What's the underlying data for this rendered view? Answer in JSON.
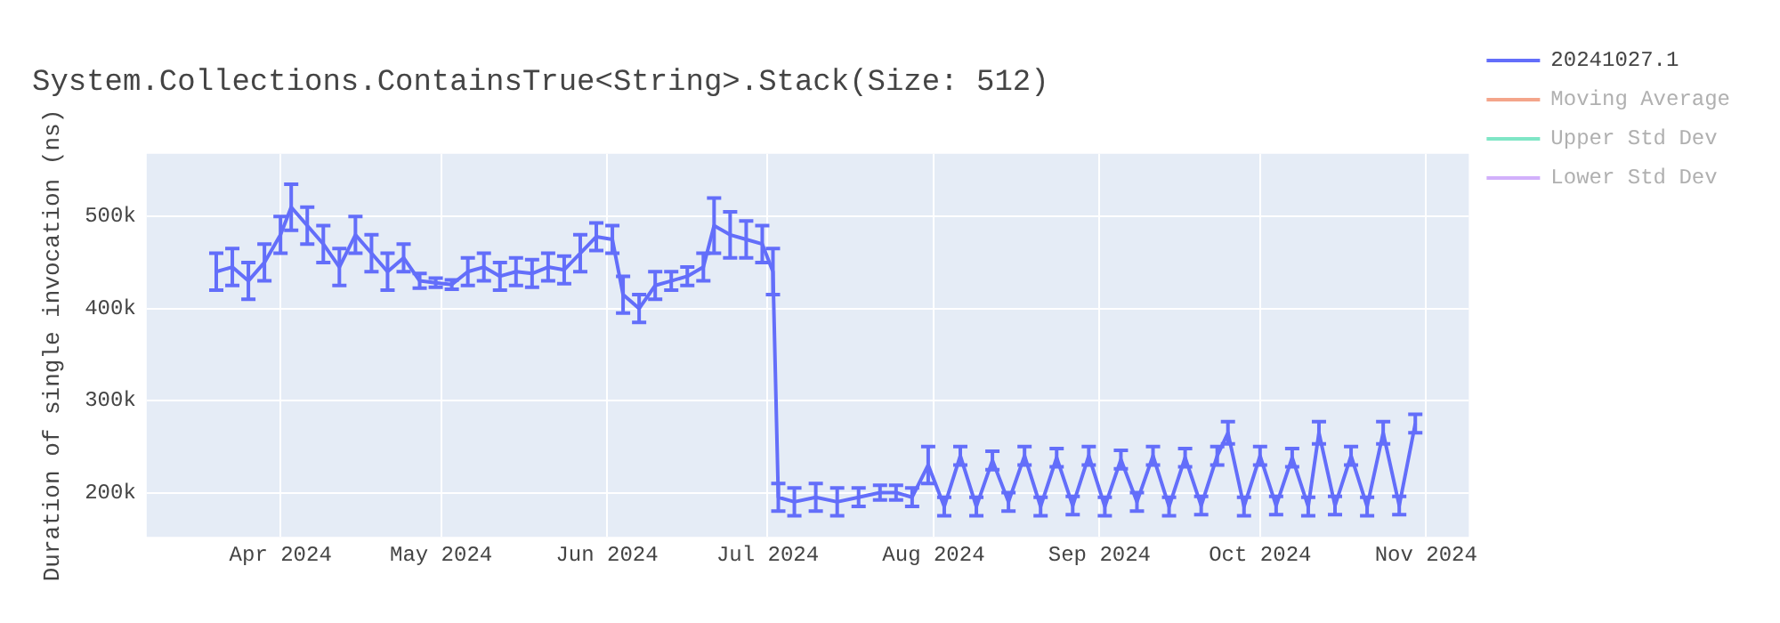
{
  "chart_data": {
    "type": "line",
    "title": "System.Collections.ContainsTrue<String>.Stack(Size: 512)",
    "ylabel": "Duration of single invocation (ns)",
    "xlim": [
      "2024-03-07",
      "2024-11-09"
    ],
    "xticks": [
      {
        "value": "2024-04-01",
        "label": "Apr 2024"
      },
      {
        "value": "2024-05-01",
        "label": "May 2024"
      },
      {
        "value": "2024-06-01",
        "label": "Jun 2024"
      },
      {
        "value": "2024-07-01",
        "label": "Jul 2024"
      },
      {
        "value": "2024-08-01",
        "label": "Aug 2024"
      },
      {
        "value": "2024-09-01",
        "label": "Sep 2024"
      },
      {
        "value": "2024-10-01",
        "label": "Oct 2024"
      },
      {
        "value": "2024-11-01",
        "label": "Nov 2024"
      }
    ],
    "ylim": [
      152000,
      568000
    ],
    "yticks": [
      {
        "value": 200000,
        "label": "200k"
      },
      {
        "value": 300000,
        "label": "300k"
      },
      {
        "value": 400000,
        "label": "400k"
      },
      {
        "value": 500000,
        "label": "500k"
      }
    ],
    "grid": true,
    "legend": "right",
    "line_style": "solid",
    "x": [
      "2024-03-20",
      "2024-03-23",
      "2024-03-26",
      "2024-03-29",
      "2024-04-01",
      "2024-04-03",
      "2024-04-06",
      "2024-04-09",
      "2024-04-12",
      "2024-04-15",
      "2024-04-18",
      "2024-04-21",
      "2024-04-24",
      "2024-04-27",
      "2024-04-30",
      "2024-05-03",
      "2024-05-06",
      "2024-05-09",
      "2024-05-12",
      "2024-05-15",
      "2024-05-18",
      "2024-05-21",
      "2024-05-24",
      "2024-05-27",
      "2024-05-30",
      "2024-06-02",
      "2024-06-04",
      "2024-06-07",
      "2024-06-10",
      "2024-06-13",
      "2024-06-16",
      "2024-06-19",
      "2024-06-21",
      "2024-06-24",
      "2024-06-27",
      "2024-06-30",
      "2024-07-02",
      "2024-07-03",
      "2024-07-06",
      "2024-07-10",
      "2024-07-14",
      "2024-07-18",
      "2024-07-22",
      "2024-07-25",
      "2024-07-28",
      "2024-07-31",
      "2024-08-03",
      "2024-08-06",
      "2024-08-09",
      "2024-08-12",
      "2024-08-15",
      "2024-08-18",
      "2024-08-21",
      "2024-08-24",
      "2024-08-27",
      "2024-08-30",
      "2024-09-02",
      "2024-09-05",
      "2024-09-08",
      "2024-09-11",
      "2024-09-14",
      "2024-09-17",
      "2024-09-20",
      "2024-09-23",
      "2024-09-25",
      "2024-09-28",
      "2024-10-01",
      "2024-10-04",
      "2024-10-07",
      "2024-10-10",
      "2024-10-12",
      "2024-10-15",
      "2024-10-18",
      "2024-10-21",
      "2024-10-24",
      "2024-10-27",
      "2024-10-30"
    ],
    "series": [
      {
        "name": "20241027.1",
        "color": "#636efa",
        "values": [
          440000,
          445000,
          430000,
          450000,
          480000,
          510000,
          490000,
          470000,
          445000,
          480000,
          460000,
          440000,
          455000,
          430000,
          428000,
          426000,
          440000,
          445000,
          435000,
          440000,
          438000,
          445000,
          442000,
          460000,
          478000,
          475000,
          415000,
          400000,
          425000,
          430000,
          435000,
          445000,
          490000,
          480000,
          475000,
          470000,
          440000,
          195000,
          190000,
          195000,
          190000,
          195000,
          200000,
          200000,
          195000,
          230000,
          185000,
          240000,
          185000,
          235000,
          190000,
          240000,
          185000,
          238000,
          186000,
          240000,
          185000,
          236000,
          190000,
          240000,
          185000,
          238000,
          186000,
          240000,
          265000,
          185000,
          240000,
          186000,
          238000,
          185000,
          265000,
          186000,
          240000,
          185000,
          265000,
          186000,
          275000
        ],
        "errors": [
          20000,
          20000,
          20000,
          20000,
          20000,
          25000,
          20000,
          20000,
          20000,
          20000,
          20000,
          20000,
          15000,
          8000,
          5000,
          5000,
          15000,
          15000,
          15000,
          15000,
          15000,
          15000,
          15000,
          20000,
          15000,
          15000,
          20000,
          15000,
          15000,
          10000,
          10000,
          15000,
          30000,
          25000,
          20000,
          20000,
          25000,
          15000,
          15000,
          15000,
          15000,
          10000,
          8000,
          8000,
          10000,
          20000,
          10000,
          10000,
          10000,
          10000,
          10000,
          10000,
          10000,
          10000,
          10000,
          10000,
          10000,
          10000,
          10000,
          10000,
          10000,
          10000,
          10000,
          10000,
          12000,
          10000,
          10000,
          10000,
          10000,
          10000,
          12000,
          10000,
          10000,
          10000,
          12000,
          10000,
          10000
        ]
      },
      {
        "name": "Moving Average",
        "color": "#f4a58a",
        "values": [
          null,
          null,
          null,
          null,
          null,
          null,
          null,
          null,
          null,
          null,
          null,
          null,
          null,
          null,
          null,
          null,
          null,
          null,
          null,
          null,
          null,
          null,
          null,
          null,
          null,
          null,
          null,
          null,
          null,
          null,
          null,
          null,
          null,
          null,
          null,
          null,
          null,
          null,
          null,
          null,
          null,
          null,
          null,
          null,
          null,
          null,
          null,
          null,
          null,
          null,
          null,
          null,
          null,
          null,
          null,
          null,
          null,
          null,
          null,
          null,
          null,
          null,
          null,
          null,
          null,
          null,
          null,
          null,
          null,
          null,
          null,
          null,
          null,
          null,
          null,
          null,
          null
        ]
      },
      {
        "name": "Upper Std Dev",
        "color": "#7fe6c6",
        "values": [
          null,
          null,
          null,
          null,
          null,
          null,
          null,
          null,
          null,
          null,
          null,
          null,
          null,
          null,
          null,
          null,
          null,
          null,
          null,
          null,
          null,
          null,
          null,
          null,
          null,
          null,
          null,
          null,
          null,
          null,
          null,
          null,
          null,
          null,
          null,
          null,
          null,
          null,
          null,
          null,
          null,
          null,
          null,
          null,
          null,
          null,
          null,
          null,
          null,
          null,
          null,
          null,
          null,
          null,
          null,
          null,
          null,
          null,
          null,
          null,
          null,
          null,
          null,
          null,
          null,
          null,
          null,
          null,
          null,
          null,
          null,
          null,
          null,
          null,
          null,
          null,
          null
        ]
      },
      {
        "name": "Lower Std Dev",
        "color": "#d2b0fb",
        "values": [
          null,
          null,
          null,
          null,
          null,
          null,
          null,
          null,
          null,
          null,
          null,
          null,
          null,
          null,
          null,
          null,
          null,
          null,
          null,
          null,
          null,
          null,
          null,
          null,
          null,
          null,
          null,
          null,
          null,
          null,
          null,
          null,
          null,
          null,
          null,
          null,
          null,
          null,
          null,
          null,
          null,
          null,
          null,
          null,
          null,
          null,
          null,
          null,
          null,
          null,
          null,
          null,
          null,
          null,
          null,
          null,
          null,
          null,
          null,
          null,
          null,
          null,
          null,
          null,
          null,
          null,
          null,
          null,
          null,
          null,
          null,
          null,
          null,
          null,
          null,
          null,
          null
        ]
      }
    ]
  }
}
